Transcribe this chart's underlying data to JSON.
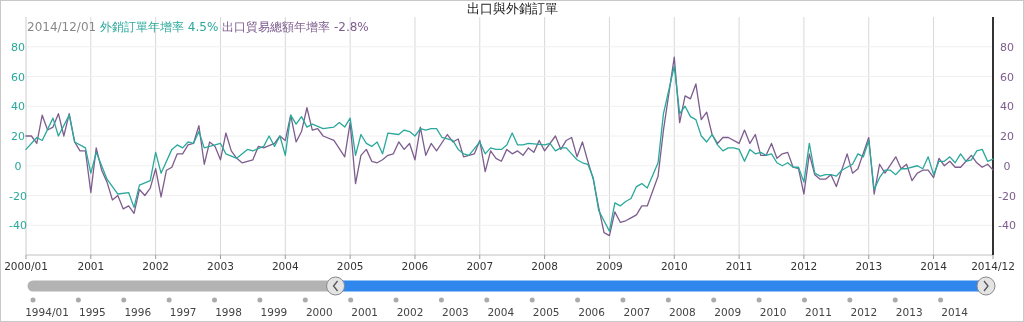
{
  "chart_data": {
    "type": "line",
    "title": "出口與外銷訂單",
    "legend_title": "2014/12/01",
    "legend": "top left",
    "grid": true,
    "xlim": [
      "2000-01",
      "2014-12"
    ],
    "xticks": [
      {
        "value": "2000-01",
        "label": "2000/01"
      },
      {
        "value": "2001-01",
        "label": "2001"
      },
      {
        "value": "2002-01",
        "label": "2002"
      },
      {
        "value": "2003-01",
        "label": "2003"
      },
      {
        "value": "2004-01",
        "label": "2004"
      },
      {
        "value": "2005-01",
        "label": "2005"
      },
      {
        "value": "2006-01",
        "label": "2006"
      },
      {
        "value": "2007-01",
        "label": "2007"
      },
      {
        "value": "2008-01",
        "label": "2008"
      },
      {
        "value": "2009-01",
        "label": "2009"
      },
      {
        "value": "2010-01",
        "label": "2010"
      },
      {
        "value": "2011-01",
        "label": "2011"
      },
      {
        "value": "2012-01",
        "label": "2012"
      },
      {
        "value": "2013-01",
        "label": "2013"
      },
      {
        "value": "2014-01",
        "label": "2014"
      },
      {
        "value": "2014-12",
        "label": "2014/12"
      }
    ],
    "ylim": [
      -60,
      100
    ],
    "yticks": [
      -40,
      -20,
      0,
      20,
      40,
      60,
      80
    ],
    "y2lim": [
      -60,
      100
    ],
    "y2ticks": [
      -40,
      -20,
      0,
      20,
      40,
      60,
      80
    ],
    "series": [
      {
        "name": "外銷訂單年增率 4.5%",
        "color": "#2aa89b",
        "x": [
          "2000-01",
          "2000-03",
          "2000-04",
          "2000-06",
          "2000-07",
          "2000-09",
          "2000-10",
          "2000-12",
          "2001-01",
          "2001-02",
          "2001-04",
          "2001-06",
          "2001-08",
          "2001-09",
          "2001-10",
          "2001-12",
          "2002-01",
          "2002-02",
          "2002-04",
          "2002-05",
          "2002-06",
          "2002-07",
          "2002-08",
          "2002-09",
          "2002-10",
          "2002-12",
          "2003-01",
          "2003-02",
          "2003-04",
          "2003-06",
          "2003-07",
          "2003-09",
          "2003-10",
          "2003-11",
          "2003-12",
          "2004-01",
          "2004-02",
          "2004-03",
          "2004-04",
          "2004-05",
          "2004-06",
          "2004-08",
          "2004-10",
          "2004-11",
          "2004-12",
          "2005-01",
          "2005-02",
          "2005-03",
          "2005-04",
          "2005-05",
          "2005-06",
          "2005-07",
          "2005-08",
          "2005-10",
          "2005-11",
          "2005-12",
          "2006-01",
          "2006-02",
          "2006-03",
          "2006-04",
          "2006-05",
          "2006-06",
          "2006-08",
          "2006-09",
          "2006-10",
          "2006-11",
          "2007-01",
          "2007-02",
          "2007-03",
          "2007-04",
          "2007-05",
          "2007-06",
          "2007-07",
          "2007-08",
          "2007-09",
          "2007-10",
          "2008-01",
          "2008-02",
          "2008-03",
          "2008-04",
          "2008-05",
          "2008-06",
          "2008-07",
          "2008-08",
          "2008-09",
          "2008-10",
          "2008-11",
          "2009-01",
          "2009-02",
          "2009-03",
          "2009-04",
          "2009-05",
          "2009-06",
          "2009-07",
          "2009-08",
          "2009-10",
          "2009-11",
          "2010-01",
          "2010-02",
          "2010-03",
          "2010-04",
          "2010-05",
          "2010-06",
          "2010-07",
          "2010-08",
          "2010-09",
          "2010-10",
          "2010-11",
          "2010-12",
          "2011-01",
          "2011-02",
          "2011-03",
          "2011-04",
          "2011-05",
          "2011-06",
          "2011-07",
          "2011-08",
          "2011-09",
          "2011-10",
          "2011-11",
          "2011-12",
          "2012-01",
          "2012-02",
          "2012-03",
          "2012-04",
          "2012-05",
          "2012-06",
          "2012-07",
          "2012-08",
          "2012-10",
          "2012-11",
          "2012-12",
          "2013-01",
          "2013-02",
          "2013-03",
          "2013-04",
          "2013-05",
          "2013-06",
          "2013-07",
          "2013-08",
          "2013-10",
          "2013-11",
          "2013-12",
          "2014-01",
          "2014-02",
          "2014-03",
          "2014-04",
          "2014-05",
          "2014-06",
          "2014-07",
          "2014-08",
          "2014-09",
          "2014-10",
          "2014-11",
          "2014-12"
        ],
        "values": [
          11,
          19,
          17,
          32,
          20,
          34,
          16,
          12,
          -5,
          9,
          -9,
          -19,
          -18,
          -28,
          -13,
          -10,
          9,
          -5,
          11,
          14,
          12,
          16,
          15,
          23,
          12,
          14,
          15,
          8,
          5,
          11,
          10,
          13,
          20,
          13,
          20,
          7,
          34,
          28,
          33,
          26,
          28,
          25,
          26,
          29,
          26,
          32,
          7,
          21,
          15,
          13,
          16,
          8,
          22,
          21,
          24,
          23,
          20,
          25,
          24,
          25,
          25,
          19,
          17,
          11,
          8,
          7,
          16,
          8,
          12,
          11,
          11,
          14,
          22,
          14,
          14,
          15,
          14,
          15,
          10,
          12,
          12,
          8,
          4,
          2,
          1,
          -8,
          -30,
          -44,
          -25,
          -27,
          -24,
          -22,
          -14,
          -12,
          -15,
          2,
          35,
          67,
          35,
          40,
          33,
          31,
          20,
          16,
          21,
          14,
          10,
          12,
          12,
          11,
          3,
          11,
          8,
          9,
          7,
          8,
          2,
          0,
          2,
          -1,
          -1,
          -11,
          15,
          -5,
          -7,
          -6,
          -6,
          -7,
          -3,
          1,
          8,
          6,
          17,
          -16,
          -8,
          -3,
          -3,
          -6,
          -2,
          -2,
          0,
          -2,
          6,
          -6,
          3,
          3,
          6,
          2,
          8,
          3,
          4,
          10,
          11,
          3,
          4.5
        ]
      },
      {
        "name": "出口貿易總額年增率 -2.8%",
        "color": "#7d5d8e",
        "x": [
          "2000-01",
          "2000-02",
          "2000-03",
          "2000-04",
          "2000-05",
          "2000-06",
          "2000-07",
          "2000-08",
          "2000-09",
          "2000-10",
          "2000-11",
          "2000-12",
          "2001-01",
          "2001-02",
          "2001-03",
          "2001-04",
          "2001-05",
          "2001-06",
          "2001-07",
          "2001-08",
          "2001-09",
          "2001-10",
          "2001-11",
          "2001-12",
          "2002-01",
          "2002-02",
          "2002-03",
          "2002-04",
          "2002-05",
          "2002-06",
          "2002-07",
          "2002-08",
          "2002-09",
          "2002-10",
          "2002-11",
          "2002-12",
          "2003-01",
          "2003-02",
          "2003-03",
          "2003-04",
          "2003-05",
          "2003-07",
          "2003-08",
          "2003-09",
          "2003-11",
          "2003-12",
          "2004-01",
          "2004-02",
          "2004-03",
          "2004-04",
          "2004-05",
          "2004-06",
          "2004-07",
          "2004-08",
          "2004-10",
          "2004-12",
          "2005-01",
          "2005-02",
          "2005-03",
          "2005-04",
          "2005-05",
          "2005-06",
          "2005-07",
          "2005-08",
          "2005-09",
          "2005-10",
          "2005-11",
          "2005-12",
          "2006-01",
          "2006-02",
          "2006-03",
          "2006-04",
          "2006-05",
          "2006-07",
          "2006-08",
          "2006-09",
          "2006-10",
          "2006-11",
          "2006-12",
          "2007-01",
          "2007-02",
          "2007-03",
          "2007-04",
          "2007-05",
          "2007-06",
          "2007-07",
          "2007-08",
          "2007-09",
          "2007-10",
          "2007-11",
          "2007-12",
          "2008-01",
          "2008-03",
          "2008-04",
          "2008-05",
          "2008-06",
          "2008-07",
          "2008-08",
          "2008-09",
          "2008-10",
          "2008-11",
          "2008-12",
          "2009-01",
          "2009-02",
          "2009-03",
          "2009-04",
          "2009-05",
          "2009-06",
          "2009-07",
          "2009-08",
          "2009-10",
          "2009-11",
          "2010-01",
          "2010-02",
          "2010-03",
          "2010-04",
          "2010-05",
          "2010-06",
          "2010-07",
          "2010-08",
          "2010-09",
          "2010-10",
          "2010-11",
          "2011-01",
          "2011-02",
          "2011-03",
          "2011-04",
          "2011-05",
          "2011-06",
          "2011-07",
          "2011-08",
          "2011-09",
          "2011-10",
          "2011-11",
          "2011-12",
          "2012-01",
          "2012-02",
          "2012-03",
          "2012-04",
          "2012-05",
          "2012-06",
          "2012-07",
          "2012-09",
          "2012-10",
          "2012-11",
          "2013-01",
          "2013-02",
          "2013-03",
          "2013-04",
          "2013-06",
          "2013-07",
          "2013-08",
          "2013-09",
          "2013-10",
          "2013-11",
          "2013-12",
          "2014-01",
          "2014-02",
          "2014-03",
          "2014-04",
          "2014-05",
          "2014-06",
          "2014-07",
          "2014-08",
          "2014-09",
          "2014-10",
          "2014-11",
          "2014-12"
        ],
        "values": [
          20,
          20,
          15,
          34,
          24,
          26,
          35,
          20,
          35,
          16,
          10,
          10,
          -18,
          12,
          -3,
          -11,
          -23,
          -20,
          -29,
          -27,
          -32,
          -16,
          -20,
          -15,
          -2,
          -21,
          -3,
          -1,
          8,
          8,
          14,
          15,
          27,
          1,
          16,
          13,
          4,
          22,
          10,
          5,
          2,
          4,
          13,
          12,
          15,
          20,
          17,
          34,
          16,
          23,
          39,
          24,
          25,
          20,
          17,
          6,
          29,
          -12,
          7,
          11,
          3,
          2,
          4,
          7,
          8,
          16,
          11,
          15,
          4,
          26,
          7,
          15,
          10,
          21,
          16,
          18,
          6,
          7,
          8,
          17,
          -4,
          10,
          5,
          3,
          11,
          8,
          10,
          7,
          12,
          9,
          17,
          10,
          20,
          11,
          17,
          19,
          6,
          16,
          3,
          -9,
          -28,
          -45,
          -47,
          -31,
          -38,
          -37,
          -35,
          -33,
          -27,
          -27,
          -7,
          24,
          73,
          29,
          47,
          45,
          55,
          31,
          36,
          21,
          15,
          19,
          19,
          15,
          24,
          15,
          21,
          7,
          7,
          15,
          5,
          8,
          9,
          -1,
          -2,
          -19,
          8,
          -6,
          -9,
          -9,
          -6,
          -14,
          8,
          -5,
          -2,
          19,
          -19,
          1,
          -5,
          6,
          -2,
          1,
          -10,
          -5,
          -3,
          -3,
          -8,
          5,
          0,
          3,
          -1,
          -1,
          3,
          7,
          2,
          -1,
          1,
          -2.8
        ]
      }
    ],
    "annotations": [
      "1994/01",
      "1995",
      "1996",
      "1997",
      "1998",
      "1999",
      "2000",
      "2001",
      "2002",
      "2003",
      "2004",
      "2005",
      "2006",
      "2007",
      "2008",
      "2009",
      "2010",
      "2011",
      "2012",
      "2013",
      "2014"
    ]
  }
}
